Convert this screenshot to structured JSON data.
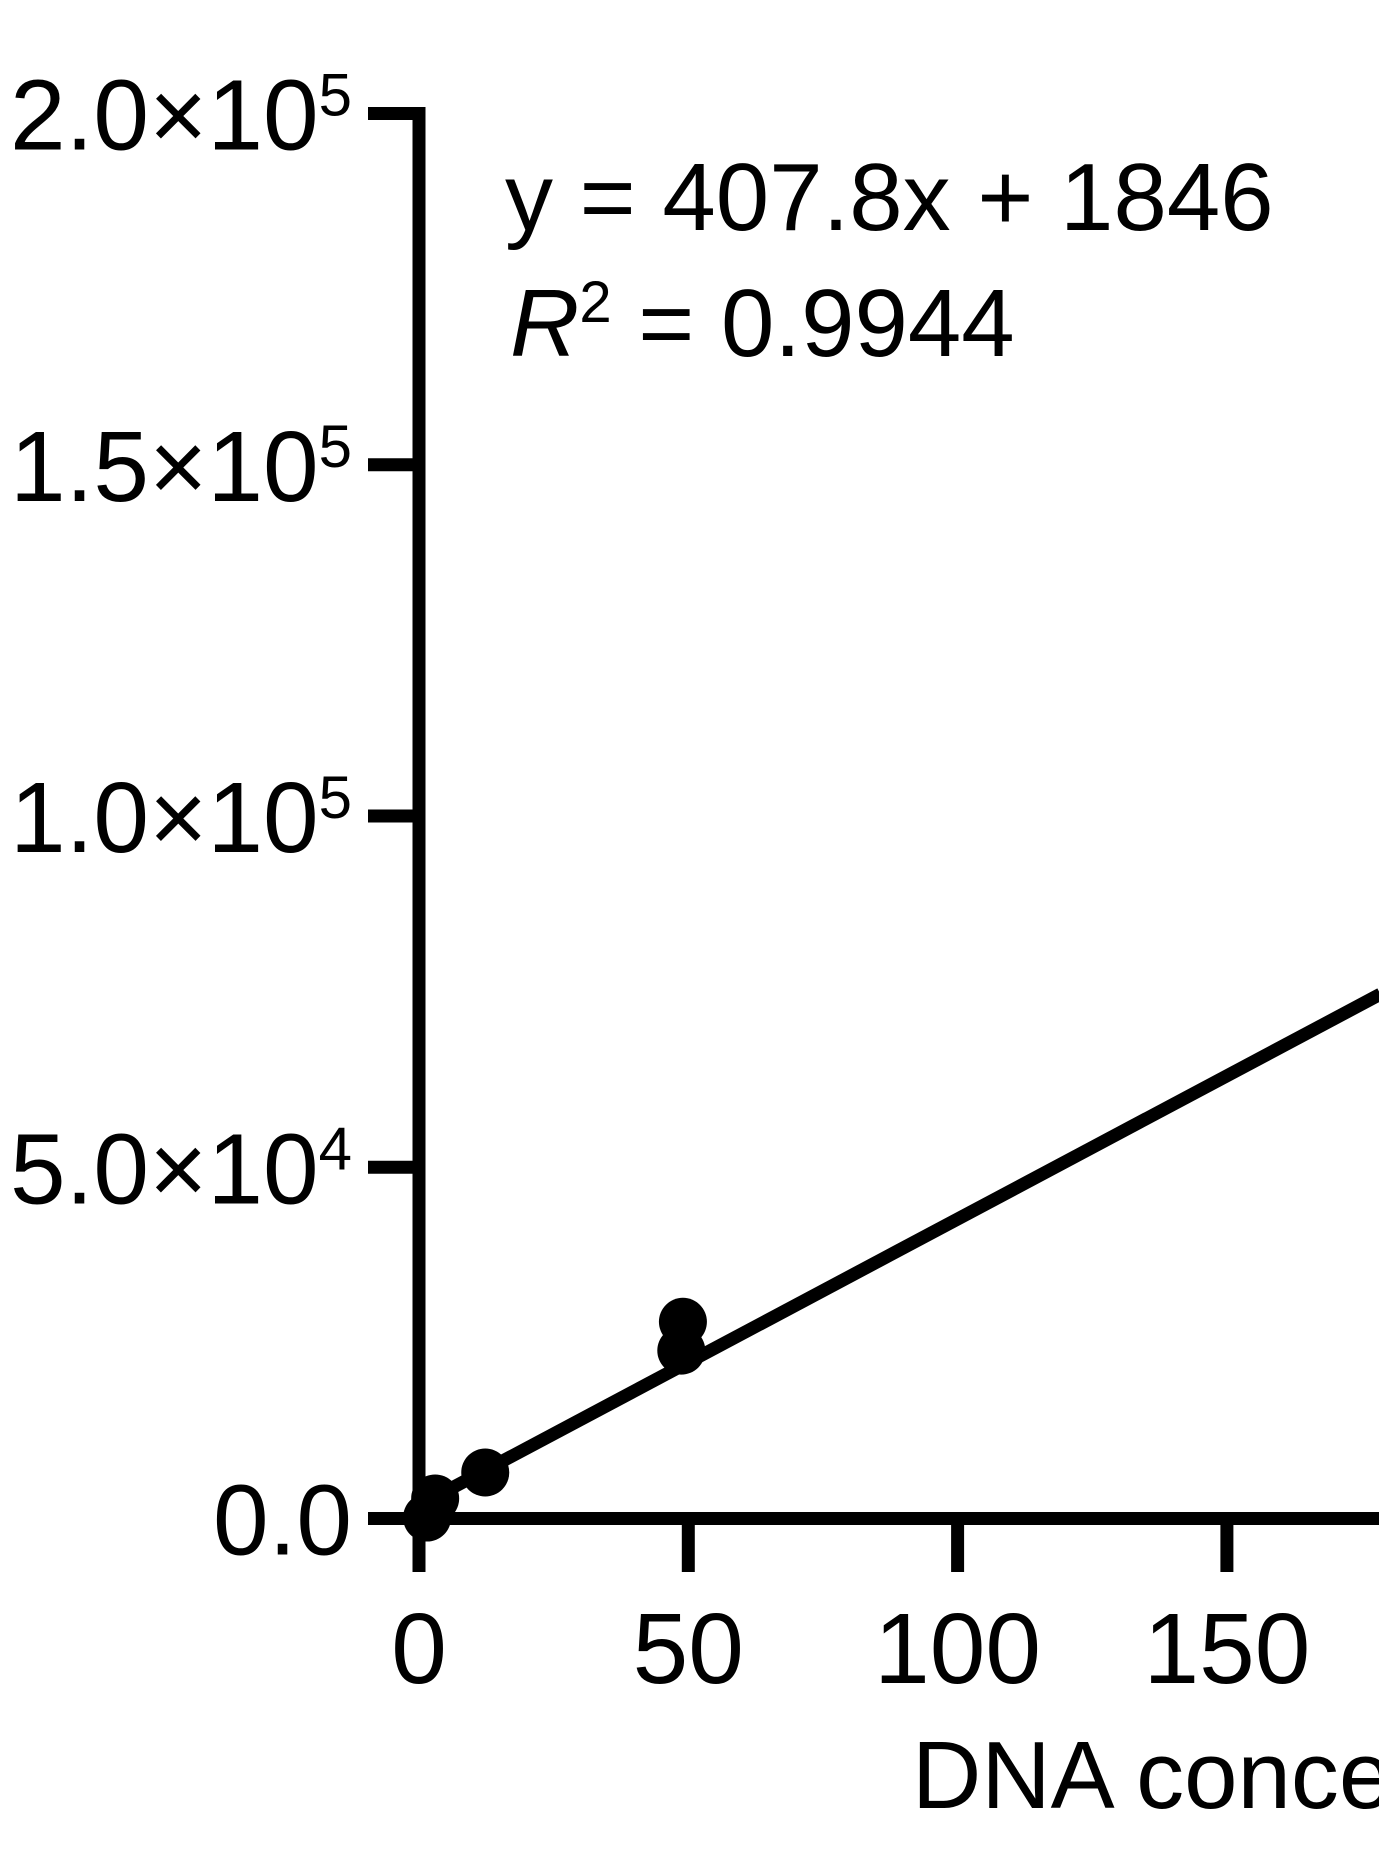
{
  "figure": {
    "background": "#ffffff",
    "ink": "#000000"
  },
  "annotation": {
    "equation": "y = 407.8x + 1846",
    "r2_var": "R",
    "r2_sup": "2",
    "r2_rest": " = 0.9944"
  },
  "chart_data": {
    "type": "scatter",
    "title": "",
    "xlabel_visible": "DNA conce",
    "ylabel": "",
    "x_ticks": [
      {
        "value": 0,
        "label": "0"
      },
      {
        "value": 50,
        "label": "50"
      },
      {
        "value": 100,
        "label": "100"
      },
      {
        "value": 150,
        "label": "150"
      }
    ],
    "y_ticks": [
      {
        "value": 0,
        "label": "0.0",
        "mantissa": "0.0",
        "sup": ""
      },
      {
        "value": 50000,
        "label": "5.0×10⁴",
        "mantissa": "5.0×10",
        "sup": "4"
      },
      {
        "value": 100000,
        "label": "1.0×10⁵",
        "mantissa": "1.0×10",
        "sup": "5"
      },
      {
        "value": 150000,
        "label": "1.5×10⁵",
        "mantissa": "1.5×10",
        "sup": "5"
      },
      {
        "value": 200000,
        "label": "2.0×10⁵",
        "mantissa": "2.0×10",
        "sup": "5"
      }
    ],
    "xlim": [
      0,
      178.5
    ],
    "ylim": [
      0,
      200000
    ],
    "grid": false,
    "legend": null,
    "marker": {
      "shape": "circle",
      "color": "#000000",
      "radius_px": 24
    },
    "points": [
      {
        "x": 1.5,
        "y": 140
      },
      {
        "x": 3,
        "y": 2850
      },
      {
        "x": 12.3,
        "y": 6550
      },
      {
        "x": 48.7,
        "y": 23900
      },
      {
        "x": 49,
        "y": 28000
      }
    ],
    "fit": {
      "slope": 407.8,
      "intercept": 1846,
      "r_squared": 0.9944,
      "line_x_start": 0,
      "line_x_end": 178.5
    }
  }
}
